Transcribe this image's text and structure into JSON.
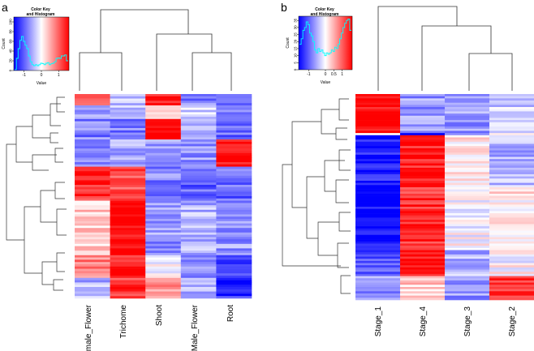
{
  "chart_data": [
    {
      "type": "heatmap",
      "panel_label": "a",
      "columns": [
        "Female_Flower",
        "Trichome",
        "Shoot",
        "Male_Flower",
        "Root"
      ],
      "color_key": {
        "title_line1": "Color Key",
        "title_line2": "and Histogram",
        "xlabel": "Value",
        "ylabel": "Count",
        "xticks": [
          "-1",
          "0",
          "1"
        ],
        "yticks": [
          "0",
          "20",
          "40",
          "60",
          "80",
          "100"
        ],
        "xlim": [
          -1.6,
          1.6
        ],
        "ylim": [
          0,
          110
        ],
        "histogram": [
          [
            -1.5,
            2
          ],
          [
            -1.4,
            25
          ],
          [
            -1.3,
            45
          ],
          [
            -1.2,
            62
          ],
          [
            -1.1,
            70
          ],
          [
            -1.0,
            60
          ],
          [
            -0.9,
            52
          ],
          [
            -0.8,
            45
          ],
          [
            -0.7,
            30
          ],
          [
            -0.6,
            18
          ],
          [
            -0.5,
            12
          ],
          [
            -0.4,
            10
          ],
          [
            -0.3,
            12
          ],
          [
            -0.2,
            10
          ],
          [
            -0.1,
            12
          ],
          [
            0.0,
            15
          ],
          [
            0.1,
            14
          ],
          [
            0.2,
            12
          ],
          [
            0.3,
            15
          ],
          [
            0.4,
            16
          ],
          [
            0.5,
            12
          ],
          [
            0.6,
            14
          ],
          [
            0.7,
            15
          ],
          [
            0.8,
            18
          ],
          [
            0.9,
            25
          ],
          [
            1.0,
            26
          ],
          [
            1.1,
            25
          ],
          [
            1.2,
            30
          ],
          [
            1.3,
            30
          ],
          [
            1.4,
            32
          ],
          [
            1.5,
            20
          ]
        ]
      }
    },
    {
      "type": "heatmap",
      "panel_label": "b",
      "columns": [
        "Stage_1",
        "Stage_4",
        "Stage_3",
        "Stage_2"
      ],
      "color_key": {
        "title_line1": "Color Key",
        "title_line2": "and Histogram",
        "xlabel": "Value",
        "ylabel": "Count",
        "xticks": [
          "-1",
          "0",
          "0.5",
          "1"
        ],
        "yticks": [
          "0",
          "5",
          "10",
          "15",
          "20",
          "25",
          "30",
          "35"
        ],
        "xlim": [
          -1.6,
          1.6
        ],
        "ylim": [
          0,
          38
        ],
        "histogram": [
          [
            -1.5,
            18
          ],
          [
            -1.4,
            22
          ],
          [
            -1.3,
            28
          ],
          [
            -1.2,
            30
          ],
          [
            -1.1,
            34
          ],
          [
            -1.0,
            32
          ],
          [
            -0.9,
            26
          ],
          [
            -0.8,
            24
          ],
          [
            -0.7,
            20
          ],
          [
            -0.6,
            14
          ],
          [
            -0.5,
            12
          ],
          [
            -0.4,
            15
          ],
          [
            -0.3,
            13
          ],
          [
            -0.2,
            14
          ],
          [
            -0.1,
            12
          ],
          [
            0.0,
            10
          ],
          [
            0.1,
            12
          ],
          [
            0.2,
            11
          ],
          [
            0.3,
            12
          ],
          [
            0.4,
            14
          ],
          [
            0.5,
            13
          ],
          [
            0.6,
            16
          ],
          [
            0.7,
            15
          ],
          [
            0.8,
            18
          ],
          [
            0.9,
            22
          ],
          [
            1.0,
            26
          ],
          [
            1.1,
            30
          ],
          [
            1.2,
            33
          ],
          [
            1.3,
            35
          ],
          [
            1.4,
            36
          ],
          [
            1.5,
            28
          ]
        ]
      }
    }
  ]
}
